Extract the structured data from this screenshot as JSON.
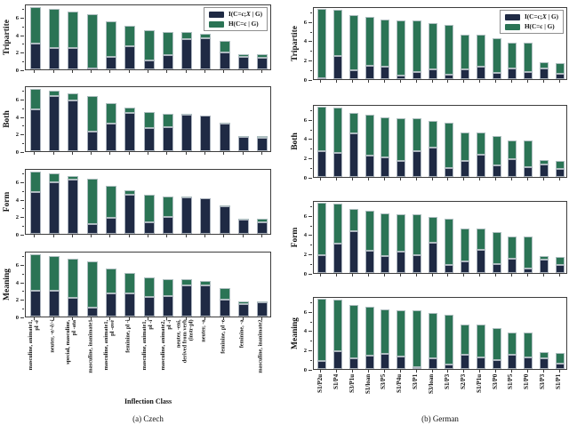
{
  "figure": {
    "captions": {
      "a": "(a) Czech",
      "b": "(b) German"
    },
    "xlabel_czech": "Inflection Class"
  },
  "legend": {
    "i_item": {
      "pre": "I(C=c;",
      "var": "X",
      "post": " | G)"
    },
    "h_item": "H(C=c | G)"
  },
  "colors": {
    "i_series": "#1f2a44",
    "h_series": "#2b7455",
    "spine": "#3d3d3d",
    "bar_edge": "#c6ccd4"
  },
  "chart_data": [
    {
      "type": "bar",
      "stacked": true,
      "title": "(a) Czech",
      "xlabel": "Inflection Class",
      "rows": [
        "Tripartite",
        "Both",
        "Form",
        "Meaning"
      ],
      "series_names": [
        "I(C=c;X | G)",
        "H(C=c | G)"
      ],
      "ylim": [
        0,
        7.6
      ],
      "yticks": [
        0,
        2,
        4,
        6
      ],
      "minor_yticks": [
        1,
        3,
        5,
        7
      ],
      "categories": [
        "masculine, animate1,\npl -é",
        "neuter, -e/-ě/-í",
        "special, masculine,\npl -ata",
        "masculine, inanimate1",
        "masculine, animate1,\npl -ové",
        "feminine, pl -i",
        "masculine, animate1,\npl -i",
        "masculine, animate2,\npl -i",
        "neuter, -ení,\nderived from verb\n(instr-pl)",
        "neuter, -o",
        "feminine, pl -e",
        "feminine, -a",
        "masculine, inanimate2"
      ],
      "totals": [
        7.2,
        7.0,
        6.65,
        6.4,
        5.6,
        5.05,
        4.55,
        4.35,
        4.3,
        4.15,
        3.25,
        1.7,
        1.7
      ],
      "i_values": {
        "Tripartite": [
          3.0,
          2.5,
          2.5,
          0.05,
          1.4,
          2.7,
          1.0,
          1.6,
          3.5,
          3.6,
          2.0,
          1.45,
          1.35
        ],
        "Both": [
          4.8,
          6.4,
          5.9,
          2.3,
          3.2,
          4.4,
          2.7,
          2.8,
          4.25,
          4.1,
          3.15,
          1.65,
          1.5
        ],
        "Form": [
          4.85,
          6.0,
          6.3,
          1.1,
          1.85,
          4.5,
          1.3,
          2.0,
          4.25,
          4.1,
          3.15,
          1.65,
          1.35
        ],
        "Meaning": [
          2.95,
          3.0,
          2.15,
          1.05,
          2.65,
          2.65,
          2.3,
          2.4,
          3.55,
          3.55,
          1.95,
          1.45,
          1.6
        ]
      },
      "h_values": {
        "Tripartite": [
          4.2,
          4.5,
          4.15,
          6.35,
          4.2,
          2.35,
          3.55,
          2.75,
          0.8,
          0.55,
          1.25,
          0.25,
          0.35
        ],
        "Both": [
          2.4,
          0.6,
          0.75,
          4.1,
          2.4,
          0.65,
          1.85,
          1.55,
          0.05,
          0.05,
          0.1,
          0.05,
          0.2
        ],
        "Form": [
          2.35,
          1.0,
          0.35,
          5.3,
          3.75,
          0.55,
          3.25,
          2.35,
          0.05,
          0.05,
          0.1,
          0.05,
          0.35
        ],
        "Meaning": [
          4.25,
          4.0,
          4.5,
          5.35,
          2.95,
          2.4,
          2.25,
          1.95,
          0.75,
          0.6,
          1.3,
          0.25,
          0.1
        ]
      }
    },
    {
      "type": "bar",
      "stacked": true,
      "title": "(b) German",
      "rows": [
        "Tripartite",
        "Both",
        "Form",
        "Meaning"
      ],
      "series_names": [
        "I(C=c;X | G)",
        "H(C=c | G)"
      ],
      "ylim": [
        0,
        7.6
      ],
      "yticks": [
        0,
        2,
        4,
        6
      ],
      "minor_yticks": [
        1,
        3,
        5,
        7
      ],
      "categories": [
        "S1/P2u",
        "S1/P4",
        "S3/P1u",
        "S1/loan",
        "S3/P5",
        "S1/P4u",
        "S3/P1",
        "S3/loan",
        "S1/P3",
        "S2/P3",
        "S1/P1u",
        "S3/P0",
        "S1/P5",
        "S1/P0",
        "S3/P3",
        "S1/P1"
      ],
      "totals": [
        7.3,
        7.2,
        6.7,
        6.5,
        6.2,
        6.15,
        6.15,
        5.8,
        5.7,
        4.6,
        4.6,
        4.3,
        3.85,
        3.8,
        1.75,
        1.65
      ],
      "i_values": {
        "Tripartite": [
          0.05,
          2.4,
          0.95,
          1.4,
          1.3,
          0.4,
          0.75,
          1.05,
          0.45,
          1.0,
          1.3,
          0.65,
          1.1,
          0.7,
          1.1,
          0.55
        ],
        "Both": [
          2.65,
          2.55,
          4.5,
          2.25,
          2.05,
          1.65,
          2.65,
          3.1,
          0.9,
          1.7,
          2.35,
          1.25,
          1.9,
          1.0,
          1.3,
          0.8
        ],
        "Form": [
          1.85,
          3.05,
          4.4,
          2.3,
          1.8,
          2.2,
          1.9,
          3.15,
          0.85,
          1.25,
          2.45,
          0.95,
          1.5,
          0.5,
          1.35,
          0.85
        ],
        "Meaning": [
          0.8,
          1.9,
          1.15,
          1.4,
          1.55,
          1.3,
          0.2,
          1.1,
          0.45,
          1.5,
          1.25,
          0.95,
          1.45,
          1.2,
          1.15,
          0.6
        ]
      },
      "h_values": {
        "Tripartite": [
          7.25,
          4.8,
          5.75,
          5.1,
          4.9,
          5.75,
          5.4,
          4.75,
          5.25,
          3.6,
          3.3,
          3.65,
          2.75,
          3.1,
          0.65,
          1.1
        ],
        "Both": [
          4.65,
          4.65,
          2.2,
          4.25,
          4.15,
          4.5,
          3.5,
          2.7,
          4.8,
          2.9,
          2.25,
          3.05,
          1.95,
          2.8,
          0.45,
          0.85
        ],
        "Form": [
          5.45,
          4.15,
          2.3,
          4.2,
          4.4,
          3.95,
          4.25,
          2.65,
          4.85,
          3.35,
          2.15,
          3.35,
          2.35,
          3.3,
          0.4,
          0.8
        ],
        "Meaning": [
          6.5,
          5.3,
          5.55,
          5.1,
          4.65,
          4.85,
          5.95,
          4.7,
          5.25,
          3.1,
          3.35,
          3.35,
          2.4,
          2.6,
          0.6,
          1.05
        ]
      }
    }
  ]
}
